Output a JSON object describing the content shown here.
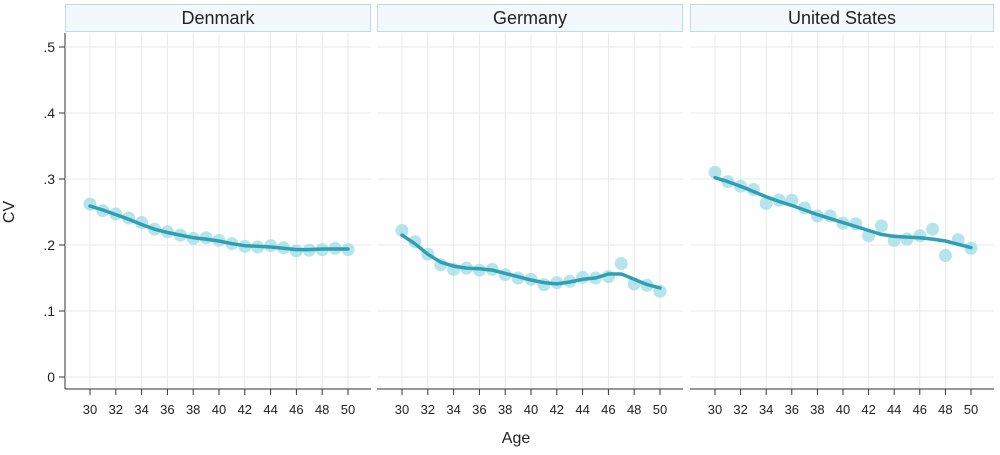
{
  "chart_data": {
    "type": "scatter",
    "ylabel": "CV",
    "xlabel": "Age",
    "ylim": [
      0,
      0.5
    ],
    "y_ticks": [
      0,
      0.1,
      0.2,
      0.3,
      0.4,
      0.5
    ],
    "y_tick_labels": [
      "0",
      ".1",
      ".2",
      ".3",
      ".4",
      ".5"
    ],
    "xlim": [
      29,
      51
    ],
    "x_ticks": [
      30,
      32,
      34,
      36,
      38,
      40,
      42,
      44,
      46,
      48,
      50
    ],
    "x_tick_labels": [
      "30",
      "32",
      "34",
      "36",
      "38",
      "40",
      "42",
      "44",
      "46",
      "48",
      "50"
    ],
    "grid": true,
    "colors": {
      "points": "#a9dfe8",
      "line": "#2f9fb3",
      "panel_header_bg": "#f2f8fb",
      "panel_header_border": "#b9dce6"
    },
    "panels": [
      {
        "title": "Denmark",
        "points": {
          "x": [
            30,
            31,
            32,
            33,
            34,
            35,
            36,
            37,
            38,
            39,
            40,
            41,
            42,
            43,
            44,
            45,
            46,
            47,
            48,
            49,
            50
          ],
          "y": [
            0.262,
            0.252,
            0.247,
            0.241,
            0.234,
            0.224,
            0.22,
            0.215,
            0.21,
            0.211,
            0.207,
            0.202,
            0.198,
            0.197,
            0.199,
            0.196,
            0.191,
            0.192,
            0.193,
            0.195,
            0.193
          ]
        },
        "fit": {
          "x": [
            30,
            31,
            32,
            33,
            34,
            35,
            36,
            37,
            38,
            39,
            40,
            41,
            42,
            43,
            44,
            45,
            46,
            47,
            48,
            49,
            50
          ],
          "y": [
            0.259,
            0.253,
            0.246,
            0.239,
            0.231,
            0.224,
            0.219,
            0.215,
            0.211,
            0.209,
            0.206,
            0.202,
            0.199,
            0.198,
            0.197,
            0.195,
            0.193,
            0.193,
            0.194,
            0.194,
            0.194
          ]
        }
      },
      {
        "title": "Germany",
        "points": {
          "x": [
            30,
            31,
            32,
            33,
            34,
            35,
            36,
            37,
            38,
            39,
            40,
            41,
            42,
            43,
            44,
            45,
            46,
            47,
            48,
            49,
            50
          ],
          "y": [
            0.222,
            0.205,
            0.186,
            0.17,
            0.163,
            0.165,
            0.162,
            0.163,
            0.155,
            0.15,
            0.148,
            0.14,
            0.143,
            0.145,
            0.151,
            0.15,
            0.152,
            0.172,
            0.141,
            0.139,
            0.13
          ]
        },
        "fit": {
          "x": [
            30,
            31,
            32,
            33,
            34,
            35,
            36,
            37,
            38,
            39,
            40,
            41,
            42,
            43,
            44,
            45,
            46,
            47,
            48,
            49,
            50
          ],
          "y": [
            0.215,
            0.202,
            0.186,
            0.174,
            0.168,
            0.165,
            0.164,
            0.162,
            0.157,
            0.152,
            0.147,
            0.143,
            0.141,
            0.144,
            0.148,
            0.15,
            0.156,
            0.156,
            0.148,
            0.14,
            0.135
          ]
        }
      },
      {
        "title": "United States",
        "points": {
          "x": [
            30,
            31,
            32,
            33,
            34,
            35,
            36,
            37,
            38,
            39,
            40,
            41,
            42,
            43,
            44,
            45,
            46,
            47,
            48,
            49,
            50
          ],
          "y": [
            0.31,
            0.296,
            0.289,
            0.284,
            0.263,
            0.268,
            0.268,
            0.256,
            0.244,
            0.244,
            0.233,
            0.232,
            0.214,
            0.229,
            0.207,
            0.209,
            0.214,
            0.224,
            0.184,
            0.208,
            0.195
          ]
        },
        "fit": {
          "x": [
            30,
            31,
            32,
            33,
            34,
            35,
            36,
            37,
            38,
            39,
            40,
            41,
            42,
            43,
            44,
            45,
            46,
            47,
            48,
            49,
            50
          ],
          "y": [
            0.302,
            0.296,
            0.289,
            0.281,
            0.273,
            0.266,
            0.26,
            0.253,
            0.246,
            0.24,
            0.234,
            0.228,
            0.222,
            0.216,
            0.213,
            0.212,
            0.211,
            0.209,
            0.206,
            0.201,
            0.196
          ]
        }
      }
    ]
  }
}
